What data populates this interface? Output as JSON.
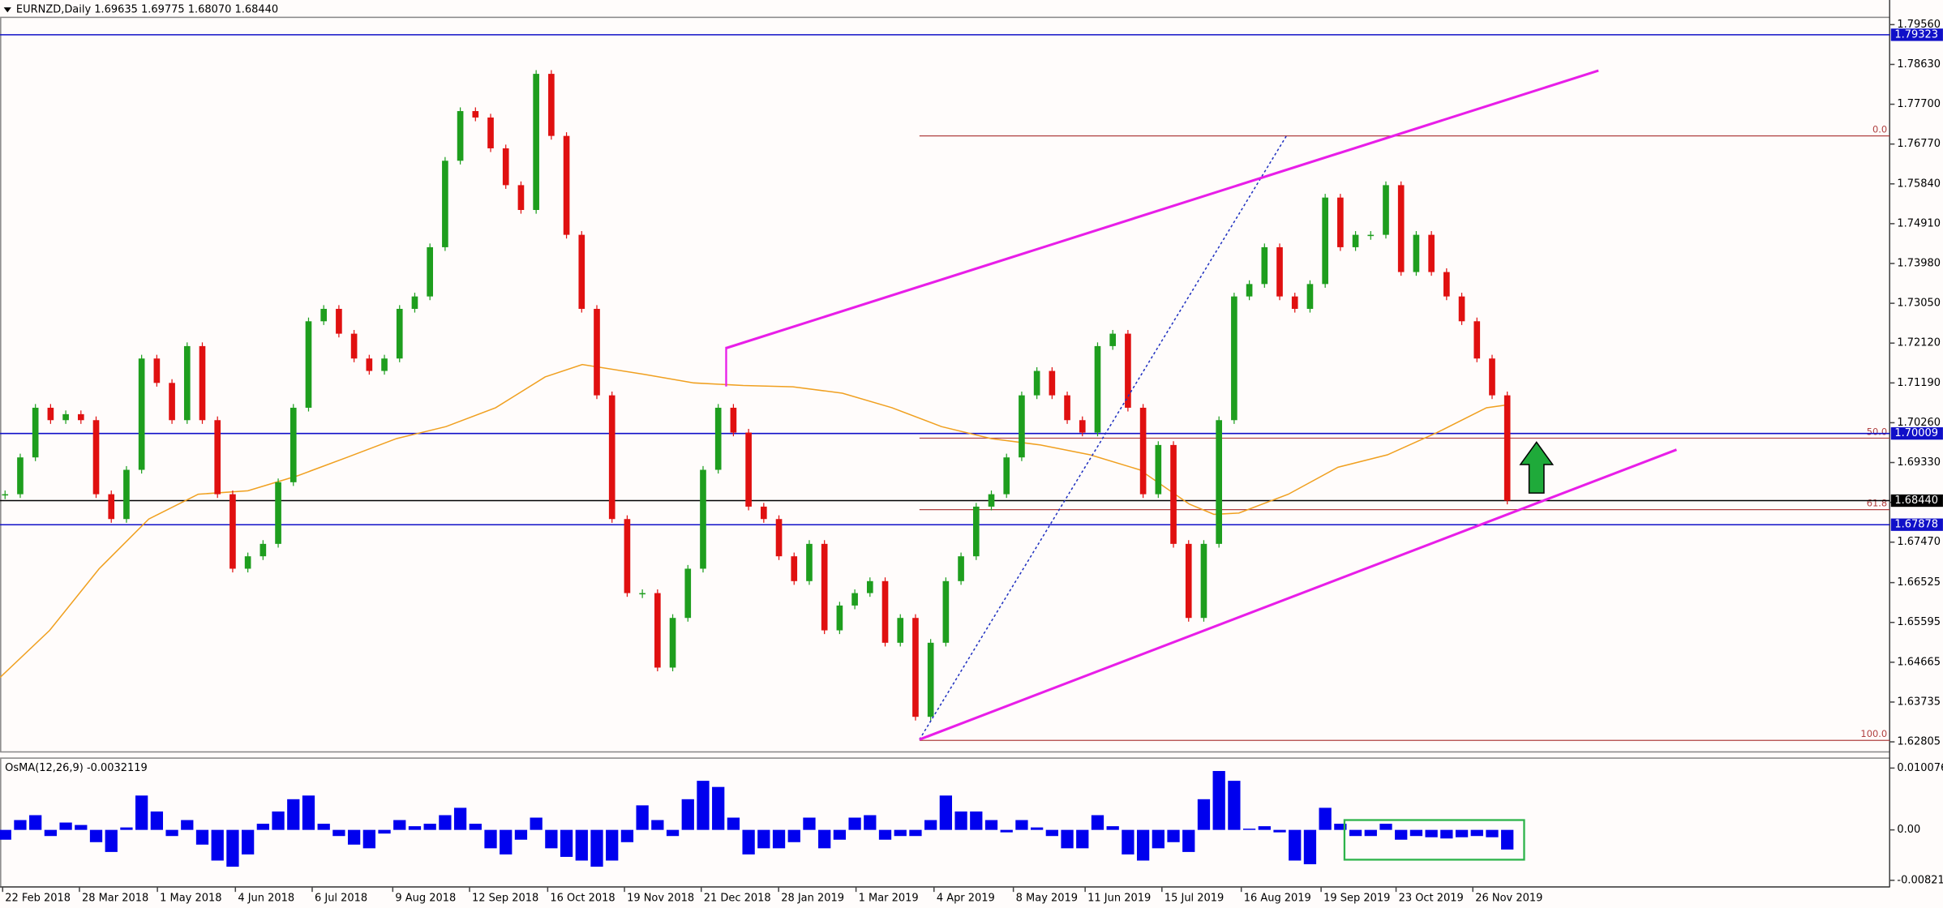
{
  "chart_data": [
    {
      "type": "candlestick",
      "title": "EURNZD,Daily  1.69635 1.69775 1.68070 1.68440",
      "up_color": "#1e9e1e",
      "down_color": "#e01010",
      "values": [
        1.6859,
        1.6945,
        1.7061,
        1.7032,
        1.7046,
        1.7032,
        1.6859,
        1.6801,
        1.6916,
        1.7176,
        1.7119,
        1.7032,
        1.7205,
        1.7032,
        1.6859,
        1.6685,
        1.6714,
        1.6743,
        1.6887,
        1.7061,
        1.7263,
        1.7292,
        1.7234,
        1.7176,
        1.7147,
        1.7176,
        1.7292,
        1.7321,
        1.7436,
        1.7638,
        1.7754,
        1.7739,
        1.7667,
        1.7581,
        1.7523,
        1.7841,
        1.7696,
        1.7465,
        1.7292,
        1.709,
        1.6801,
        1.6628,
        1.6628,
        1.6454,
        1.657,
        1.6685,
        1.6916,
        1.7061,
        1.7003,
        1.683,
        1.6801,
        1.6714,
        1.6656,
        1.6743,
        1.6541,
        1.6599,
        1.6628,
        1.6656,
        1.6512,
        1.657,
        1.6339,
        1.6512,
        1.6656,
        1.6714,
        1.683,
        1.6859,
        1.6945,
        1.709,
        1.7147,
        1.709,
        1.7032,
        1.7003,
        1.7205,
        1.7234,
        1.7061,
        1.6859,
        1.6974,
        1.6743,
        1.657,
        1.6743,
        1.7032,
        1.7321,
        1.735,
        1.7436,
        1.7321,
        1.7292,
        1.735,
        1.7552,
        1.7436,
        1.7465,
        1.7465,
        1.7581,
        1.7378,
        1.7465,
        1.7378,
        1.7321,
        1.7263,
        1.7176,
        1.709,
        1.6844
      ],
      "ma": {
        "color": "#f0a020",
        "x": [
          -0.33,
          2.94,
          6.2,
          9.47,
          12.73,
          16,
          19.27,
          22.53,
          25.8,
          29.06,
          32.33,
          35.59,
          38.04,
          42.12,
          45.39,
          48.65,
          51.92,
          55.18,
          58.45,
          61.71,
          64.98,
          68.24,
          71.51,
          74.78,
          78.04,
          79.67,
          81.31,
          84.57,
          87.84,
          91.1,
          94.37,
          97.63,
          98.86
        ],
        "values": [
          1.6431,
          1.6541,
          1.6685,
          1.6801,
          1.6859,
          1.6867,
          1.6902,
          1.6945,
          1.6989,
          1.7017,
          1.7061,
          1.7133,
          1.7162,
          1.7139,
          1.7119,
          1.7113,
          1.711,
          1.7095,
          1.7061,
          1.7017,
          1.6989,
          1.6974,
          1.6951,
          1.6916,
          1.6836,
          1.6812,
          1.6815,
          1.6859,
          1.6922,
          1.6951,
          1.7003,
          1.7061,
          1.7067
        ]
      },
      "levels": [
        {
          "value": 1.79323,
          "label": "1.79323",
          "color": "#1010c8"
        },
        {
          "value": 1.70009,
          "label": "1.70009",
          "color": "#1010c8"
        },
        {
          "value": 1.6844,
          "label": "1.68440",
          "color": "#000000"
        },
        {
          "value": 1.67878,
          "label": "1.67878",
          "color": "#1010c8"
        }
      ],
      "fib": {
        "color": "#b04040",
        "levels": [
          {
            "ratio": "0.0",
            "price": 1.7696
          },
          {
            "ratio": "50.0",
            "price": 1.699
          },
          {
            "ratio": "61.8",
            "price": 1.6823
          },
          {
            "ratio": "100.0",
            "price": 1.6284
          }
        ]
      },
      "xlim": [
        -0.33,
        124.2
      ],
      "xticks": [
        {
          "value": -0.16,
          "label": "22 Feb 2018"
        },
        {
          "value": 4.9,
          "label": "28 Mar 2018"
        },
        {
          "value": 10.04,
          "label": "1 May 2018"
        },
        {
          "value": 15.18,
          "label": "4 Jun 2018"
        },
        {
          "value": 20.24,
          "label": "6 Jul 2018"
        },
        {
          "value": 25.55,
          "label": "9 Aug 2018"
        },
        {
          "value": 30.61,
          "label": "12 Sep 2018"
        },
        {
          "value": 35.76,
          "label": "16 Oct 2018"
        },
        {
          "value": 40.82,
          "label": "19 Nov 2018"
        },
        {
          "value": 45.88,
          "label": "21 Dec 2018"
        },
        {
          "value": 50.98,
          "label": "28 Jan 2019"
        },
        {
          "value": 56.08,
          "label": "1 Mar 2019"
        },
        {
          "value": 61.22,
          "label": "4 Apr 2019"
        },
        {
          "value": 66.45,
          "label": "8 May 2019"
        },
        {
          "value": 71.18,
          "label": "11 Jun 2019"
        },
        {
          "value": 76.24,
          "label": "15 Jul 2019"
        },
        {
          "value": 81.47,
          "label": "16 Aug 2019"
        },
        {
          "value": 86.73,
          "label": "19 Sep 2019"
        },
        {
          "value": 91.67,
          "label": "23 Oct 2019"
        },
        {
          "value": 96.73,
          "label": "26 Nov 2019"
        }
      ],
      "ylim": [
        1.6257,
        1.7973
      ],
      "yticks": [
        {
          "value": 1.7956,
          "label": "1.79560"
        },
        {
          "value": 1.7863,
          "label": "1.78630"
        },
        {
          "value": 1.777,
          "label": "1.77700"
        },
        {
          "value": 1.7677,
          "label": "1.76770"
        },
        {
          "value": 1.7584,
          "label": "1.75840"
        },
        {
          "value": 1.7491,
          "label": "1.74910"
        },
        {
          "value": 1.7398,
          "label": "1.73980"
        },
        {
          "value": 1.7305,
          "label": "1.73050"
        },
        {
          "value": 1.7212,
          "label": "1.72120"
        },
        {
          "value": 1.7119,
          "label": "1.71190"
        },
        {
          "value": 1.7026,
          "label": "1.70260"
        },
        {
          "value": 1.6933,
          "label": "1.69330"
        },
        {
          "value": 1.684,
          "label": "1.68400"
        },
        {
          "value": 1.6747,
          "label": "1.67470"
        },
        1.66525,
        1.65595,
        1.64665,
        1.63735,
        1.62805
      ]
    },
    {
      "type": "bar",
      "title": "OsMA(12,26,9) -0.0032119",
      "color": "#0000ee",
      "values": [
        -0.0016,
        0.0016,
        0.0024,
        -0.001,
        0.0012,
        0.0008,
        -0.002,
        -0.0036,
        0.0004,
        0.0056,
        0.003,
        -0.001,
        0.0016,
        -0.0024,
        -0.005,
        -0.006,
        -0.004,
        0.001,
        0.003,
        0.005,
        0.0056,
        0.001,
        -0.001,
        -0.0024,
        -0.003,
        -0.0006,
        0.0016,
        0.0006,
        0.001,
        0.0024,
        0.0036,
        0.001,
        -0.003,
        -0.004,
        -0.0016,
        0.002,
        -0.003,
        -0.0044,
        -0.005,
        -0.006,
        -0.005,
        -0.002,
        0.004,
        0.0016,
        -0.001,
        0.005,
        0.008,
        0.007,
        0.002,
        -0.004,
        -0.003,
        -0.003,
        -0.002,
        0.002,
        -0.003,
        -0.0016,
        0.002,
        0.0024,
        -0.0016,
        -0.001,
        -0.001,
        0.0016,
        0.0056,
        0.003,
        0.003,
        0.0016,
        -0.0004,
        0.0016,
        0.0004,
        -0.001,
        -0.003,
        -0.003,
        0.0024,
        0.0006,
        -0.004,
        -0.005,
        -0.003,
        -0.002,
        -0.0036,
        0.005,
        0.0096,
        0.008,
        0.0002,
        0.0006,
        -0.0004,
        -0.005,
        -0.0056,
        0.0036,
        0.001,
        -0.001,
        -0.001,
        0.001,
        -0.0016,
        -0.001,
        -0.0012,
        -0.0014,
        -0.0012,
        -0.001,
        -0.0012,
        -0.0032
      ],
      "ylim": [
        -0.0093,
        0.0117
      ],
      "yticks": [
        0.0100767,
        {
          "value": 0,
          "label": "0.00"
        },
        -0.0082174
      ]
    }
  ]
}
